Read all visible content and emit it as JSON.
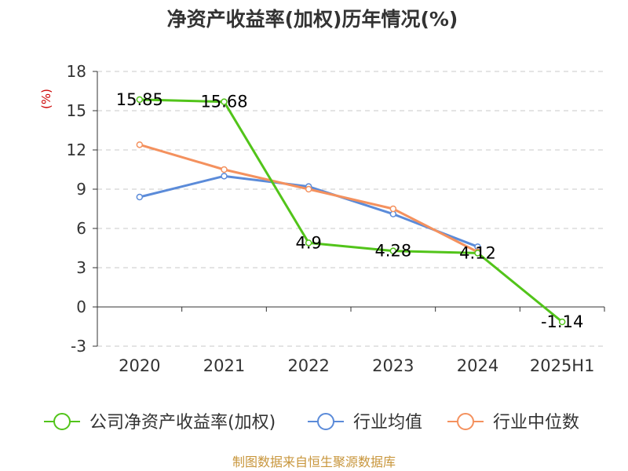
{
  "chart_data": {
    "type": "line",
    "title": "净资产收益率(加权)历年情况(%)",
    "ylabel": "(%)",
    "categories": [
      "2020",
      "2021",
      "2022",
      "2023",
      "2024",
      "2025H1"
    ],
    "ylim": [
      -3,
      18
    ],
    "yticks": [
      -3,
      0,
      3,
      6,
      9,
      12,
      15,
      18
    ],
    "grid": true,
    "legend": "bottom",
    "series": [
      {
        "name": "公司净资产收益率(加权)",
        "color": "#52c41a",
        "values": [
          15.85,
          15.68,
          4.9,
          4.28,
          4.12,
          -1.14
        ],
        "labels": [
          "15.85",
          "15.68",
          "4.9",
          "4.28",
          "4.12",
          "-1.14"
        ]
      },
      {
        "name": "行业均值",
        "color": "#5b8bd9",
        "values": [
          8.4,
          10.0,
          9.2,
          7.1,
          4.6,
          null
        ]
      },
      {
        "name": "行业中位数",
        "color": "#f4915e",
        "values": [
          12.4,
          10.5,
          9.0,
          7.5,
          4.2,
          null
        ]
      }
    ]
  },
  "source": "制图数据来自恒生聚源数据库"
}
